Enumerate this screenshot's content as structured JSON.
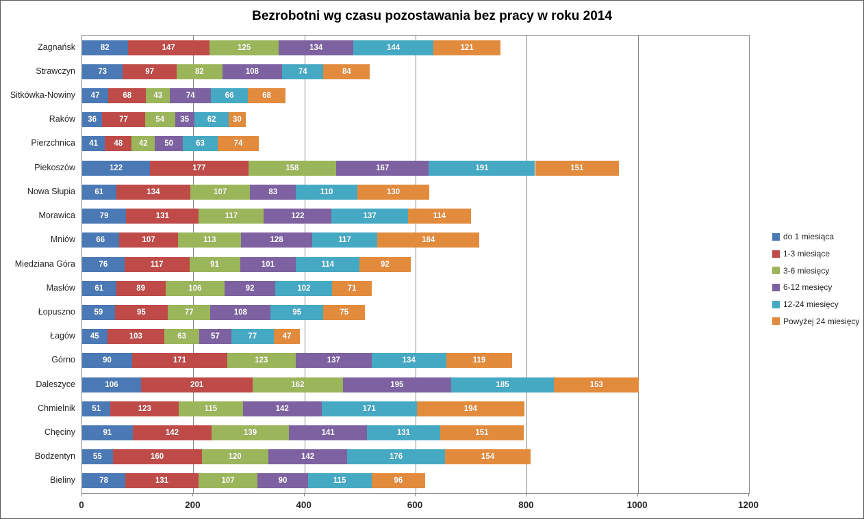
{
  "chart_data": {
    "type": "bar",
    "variant": "horizontal-stacked",
    "title": "Bezrobotni wg czasu pozostawania bez pracy w roku 2014",
    "categories": [
      "Zagnańsk",
      "Strawczyn",
      "Sitkówka-Nowiny",
      "Raków",
      "Pierzchnica",
      "Piekoszów",
      "Nowa Słupia",
      "Morawica",
      "Mniów",
      "Miedziana Góra",
      "Masłów",
      "Łopuszno",
      "Łagów",
      "Górno",
      "Daleszyce",
      "Chmielnik",
      "Chęciny",
      "Bodzentyn",
      "Bieliny"
    ],
    "series": [
      {
        "name": "do 1 miesiąca",
        "color": "#4A79B5",
        "values": [
          82,
          73,
          47,
          36,
          41,
          122,
          61,
          79,
          66,
          76,
          61,
          59,
          45,
          90,
          106,
          51,
          91,
          55,
          78
        ]
      },
      {
        "name": "1-3 miesiące",
        "color": "#BE4B48",
        "values": [
          147,
          97,
          68,
          77,
          48,
          177,
          134,
          131,
          107,
          117,
          89,
          95,
          103,
          171,
          201,
          123,
          142,
          160,
          131
        ]
      },
      {
        "name": "3-6 miesięcy",
        "color": "#9BB55A",
        "values": [
          125,
          82,
          43,
          54,
          42,
          158,
          107,
          117,
          113,
          91,
          106,
          77,
          63,
          123,
          162,
          115,
          139,
          120,
          107
        ]
      },
      {
        "name": "6-12 mesięcy",
        "color": "#7D61A1",
        "values": [
          134,
          108,
          74,
          35,
          50,
          167,
          83,
          122,
          128,
          101,
          92,
          108,
          57,
          137,
          195,
          142,
          141,
          142,
          90
        ]
      },
      {
        "name": "12-24 miesięcy",
        "color": "#45A9C4",
        "values": [
          144,
          74,
          66,
          62,
          63,
          191,
          110,
          137,
          117,
          114,
          102,
          95,
          77,
          134,
          185,
          171,
          131,
          176,
          115
        ]
      },
      {
        "name": "Powyżej 24 miesięcy",
        "color": "#E28B3D",
        "values": [
          121,
          84,
          68,
          30,
          74,
          151,
          130,
          114,
          184,
          92,
          71,
          75,
          47,
          119,
          153,
          194,
          151,
          154,
          96
        ]
      }
    ],
    "x_axis": {
      "min": 0,
      "max": 1200,
      "tick_interval": 200,
      "tick_labels": [
        "0",
        "200",
        "400",
        "600",
        "800",
        "1000",
        "1200"
      ]
    },
    "legend_position": "right",
    "grid": true,
    "grid_color": "#868686",
    "value_labels": "inside-white-bold"
  }
}
